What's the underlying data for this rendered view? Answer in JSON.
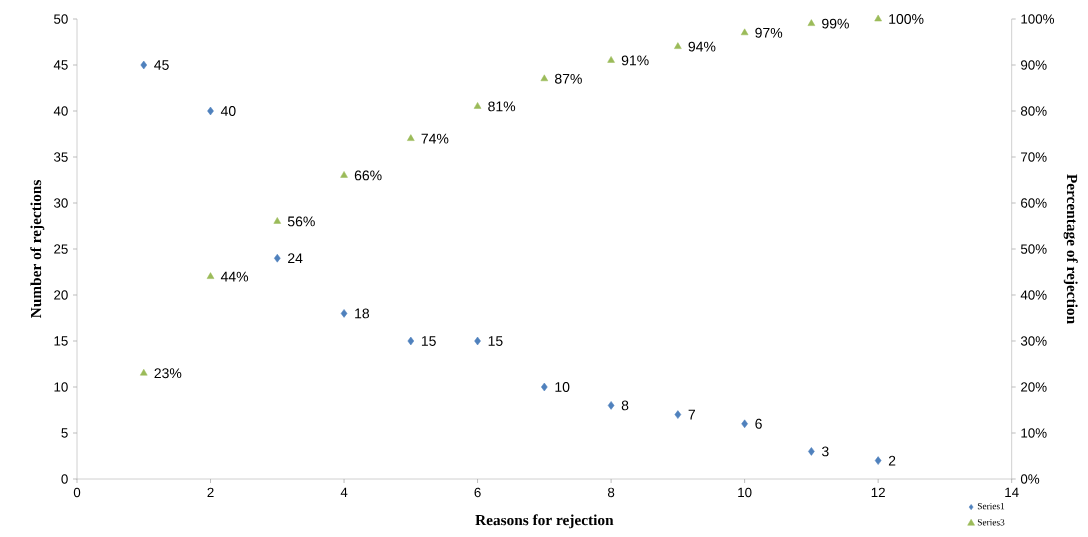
{
  "chart_data": {
    "type": "scatter",
    "xlabel": "Reasons for rejection",
    "ylabel": "Number of rejections",
    "y2label": "Percentage of rejection",
    "x": [
      1,
      2,
      3,
      4,
      5,
      6,
      7,
      8,
      9,
      10,
      11,
      12
    ],
    "series": [
      {
        "name": "Series1",
        "color": "#4f81bd",
        "marker": "diamond",
        "values": [
          45,
          40,
          24,
          18,
          15,
          15,
          10,
          8,
          7,
          6,
          3,
          2
        ],
        "value_labels": [
          "45",
          "40",
          "24",
          "18",
          "15",
          "15",
          "10",
          "8",
          "7",
          "6",
          "3",
          "2"
        ]
      },
      {
        "name": "Series3",
        "color": "#9bbb59",
        "marker": "triangle",
        "axis": "y2",
        "values": [
          23,
          44,
          56,
          66,
          74,
          81,
          87,
          91,
          94,
          97,
          99,
          100
        ],
        "value_labels": [
          "23%",
          "44%",
          "56%",
          "66%",
          "74%",
          "81%",
          "87%",
          "91%",
          "94%",
          "97%",
          "99%",
          "100%"
        ]
      }
    ],
    "xlim": [
      0,
      14
    ],
    "xticks": [
      0,
      2,
      4,
      6,
      8,
      10,
      12,
      14
    ],
    "ylim": [
      0,
      50
    ],
    "yticks": [
      0,
      5,
      10,
      15,
      20,
      25,
      30,
      35,
      40,
      45,
      50
    ],
    "y2lim": [
      0,
      100
    ],
    "y2ticks": [
      {
        "value": 0,
        "label": "0%"
      },
      {
        "value": 10,
        "label": "10%"
      },
      {
        "value": 20,
        "label": "20%"
      },
      {
        "value": 30,
        "label": "30%"
      },
      {
        "value": 40,
        "label": "40%"
      },
      {
        "value": 50,
        "label": "50%"
      },
      {
        "value": 60,
        "label": "60%"
      },
      {
        "value": 70,
        "label": "70%"
      },
      {
        "value": 80,
        "label": "80%"
      },
      {
        "value": 90,
        "label": "90%"
      },
      {
        "value": 100,
        "label": "100%"
      }
    ],
    "legend": "bottom right",
    "grid": false
  }
}
